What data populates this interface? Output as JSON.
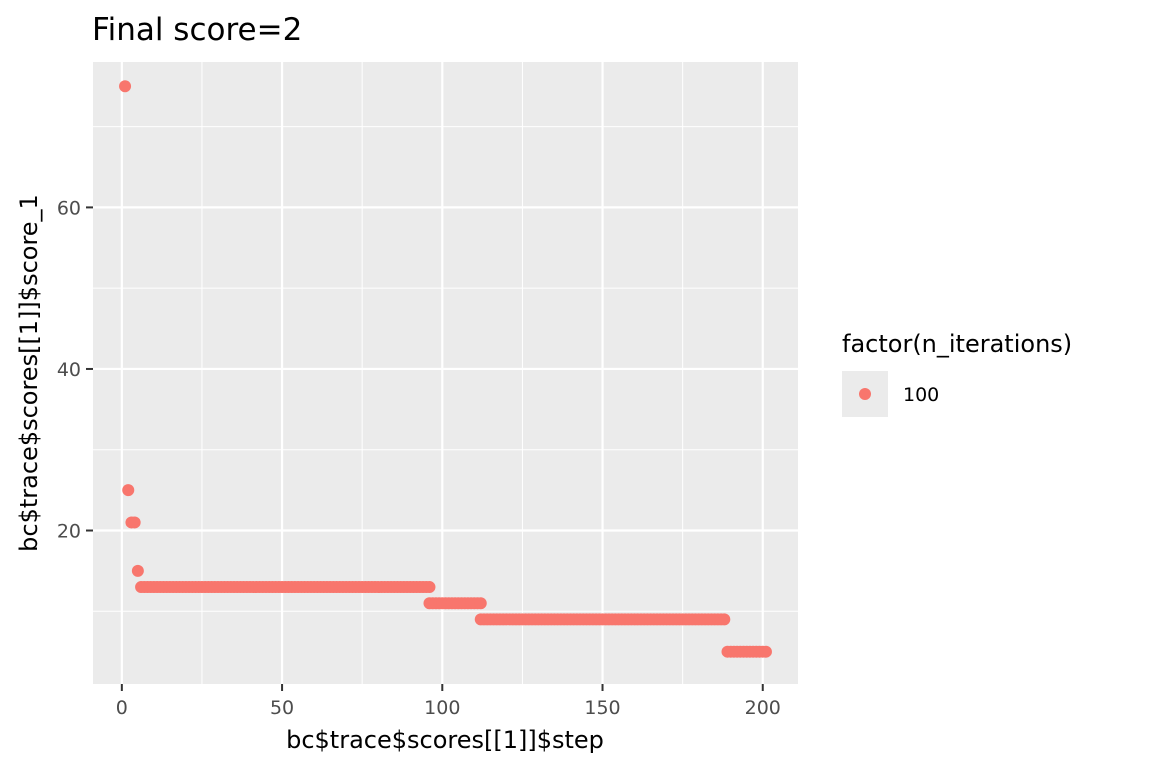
{
  "chart_data": {
    "type": "scatter",
    "title": "Final score=2",
    "xlabel": "bc$trace$scores[[1]]$step",
    "ylabel": "bc$trace$scores[[1]]$score_1",
    "xlim": [
      -9,
      211
    ],
    "ylim": [
      1,
      78
    ],
    "x_ticks": [
      0,
      50,
      100,
      150,
      200
    ],
    "y_ticks": [
      20,
      40,
      60
    ],
    "x_tick_labels": [
      "0",
      "50",
      "100",
      "150",
      "200"
    ],
    "y_tick_labels": [
      "20",
      "40",
      "60"
    ],
    "grid": true,
    "legend": {
      "title": "factor(n_iterations)",
      "position": "right",
      "entries": [
        {
          "label": "100",
          "color": "#F8766D"
        }
      ]
    },
    "series": [
      {
        "name": "100",
        "color": "#F8766D",
        "segments": [
          {
            "x_start": 1,
            "x_end": 1,
            "y": 75
          },
          {
            "x_start": 2,
            "x_end": 2,
            "y": 25
          },
          {
            "x_start": 3,
            "x_end": 4,
            "y": 21
          },
          {
            "x_start": 5,
            "x_end": 5,
            "y": 15
          },
          {
            "x_start": 6,
            "x_end": 96,
            "y": 13
          },
          {
            "x_start": 96,
            "x_end": 112,
            "y": 11
          },
          {
            "x_start": 112,
            "x_end": 188,
            "y": 9
          },
          {
            "x_start": 189,
            "x_end": 201,
            "y": 5
          }
        ]
      }
    ]
  }
}
